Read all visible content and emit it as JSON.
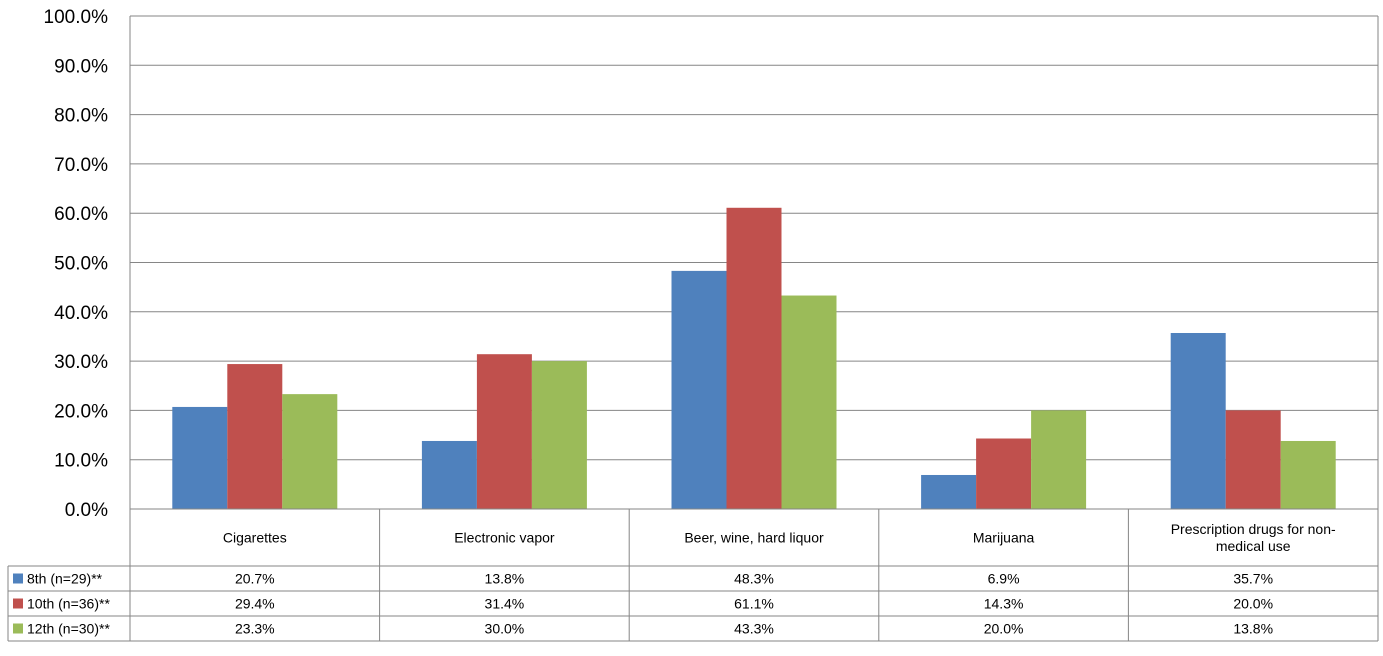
{
  "chart_data": {
    "type": "bar",
    "title": "",
    "xlabel": "",
    "ylabel": "",
    "ylim": [
      0,
      100
    ],
    "yticks": [
      "0.0%",
      "10.0%",
      "20.0%",
      "30.0%",
      "40.0%",
      "50.0%",
      "60.0%",
      "70.0%",
      "80.0%",
      "90.0%",
      "100.0%"
    ],
    "grid": true,
    "legend_position": "data-table-left",
    "categories": [
      [
        "Cigarettes"
      ],
      [
        "Electronic vapor"
      ],
      [
        "Beer, wine, hard liquor"
      ],
      [
        "Marijuana"
      ],
      [
        "Prescription drugs for non-",
        "medical use"
      ]
    ],
    "series": [
      {
        "name": "8th (n=29)**",
        "color": "#4f81bd",
        "values": [
          20.7,
          13.8,
          48.3,
          6.9,
          35.7
        ],
        "labels": [
          "20.7%",
          "13.8%",
          "48.3%",
          "6.9%",
          "35.7%"
        ]
      },
      {
        "name": "10th (n=36)**",
        "color": "#c0504d",
        "values": [
          29.4,
          31.4,
          61.1,
          14.3,
          20.0
        ],
        "labels": [
          "29.4%",
          "31.4%",
          "61.1%",
          "14.3%",
          "20.0%"
        ]
      },
      {
        "name": "12th (n=30)**",
        "color": "#9bbb59",
        "values": [
          23.3,
          30.0,
          43.3,
          20.0,
          13.8
        ],
        "labels": [
          "23.3%",
          "30.0%",
          "43.3%",
          "20.0%",
          "13.8%"
        ]
      }
    ]
  }
}
